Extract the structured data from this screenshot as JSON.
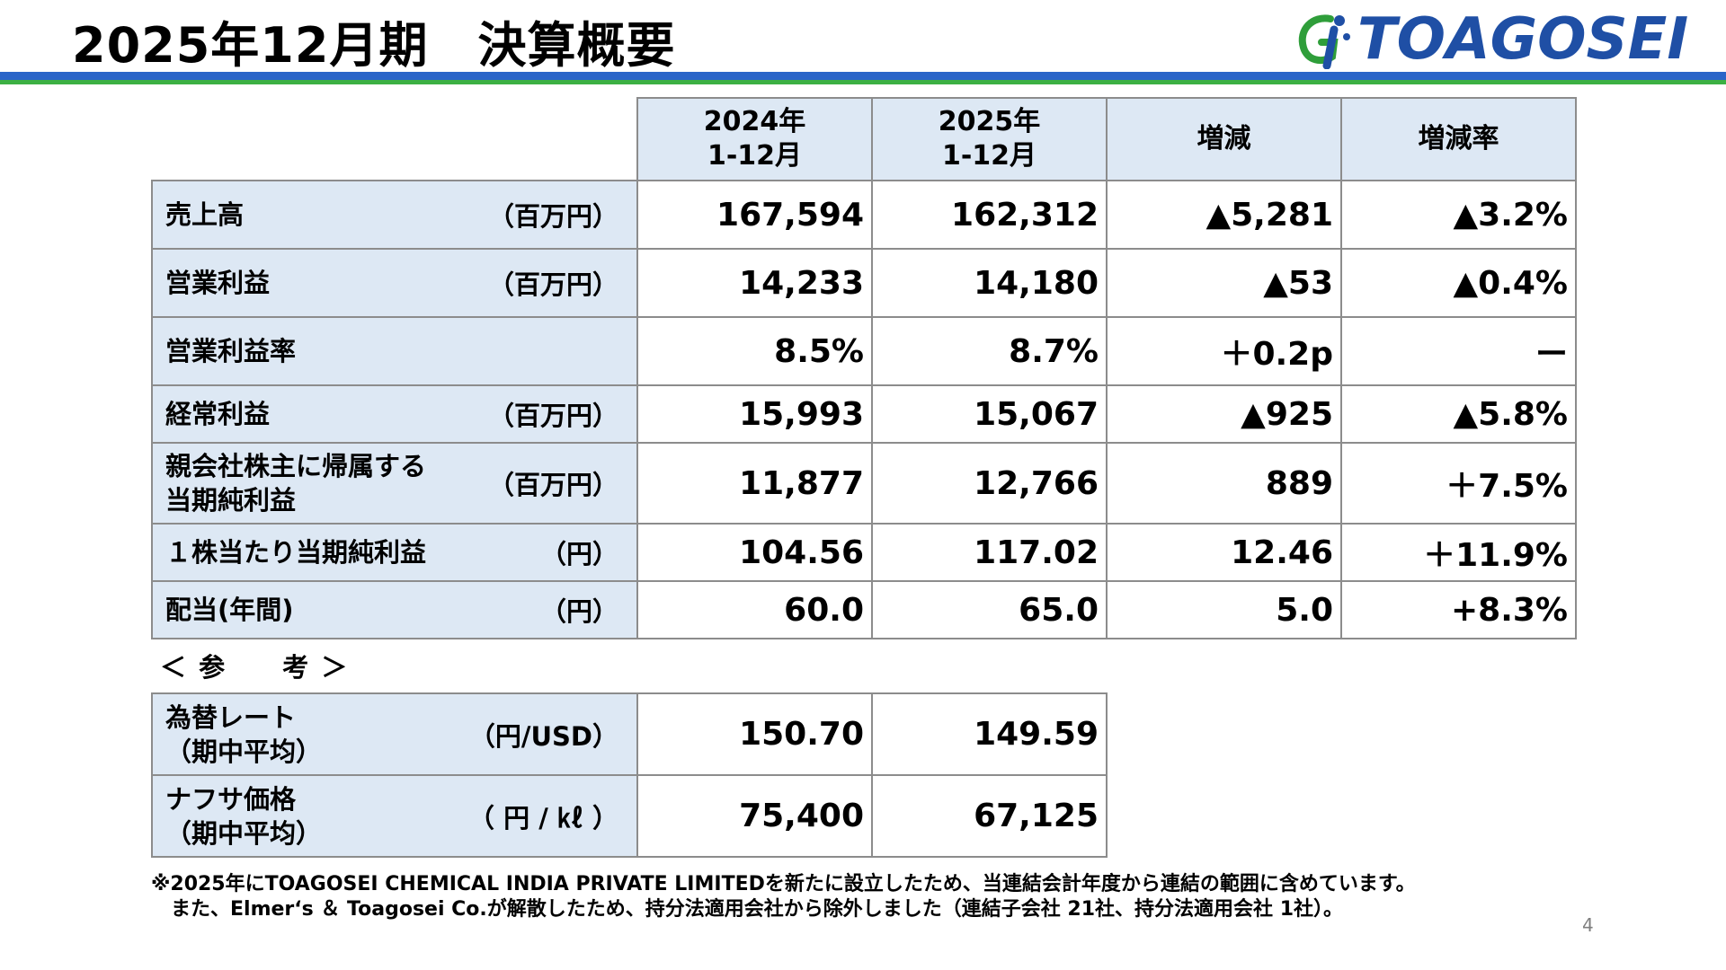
{
  "header": {
    "title": "2025年12月期　決算概要",
    "logo_text": "TOAGOSEI",
    "logo_icon": "toagosei-logo-mark"
  },
  "colors": {
    "brand_blue": "#1f4fa5",
    "rule_blue": "#2a65c8",
    "rule_green": "#3cb043",
    "header_bg": "#dde8f4"
  },
  "table": {
    "col_headers": [
      [
        "2024年",
        "1-12月"
      ],
      [
        "2025年",
        "1-12月"
      ],
      [
        "増減"
      ],
      [
        "増減率"
      ]
    ],
    "rows": [
      {
        "label": [
          "売上高"
        ],
        "unit": "（百万円）",
        "values": [
          "167,594",
          "162,312",
          "▲5,281",
          "▲3.2%"
        ]
      },
      {
        "label": [
          "営業利益"
        ],
        "unit": "（百万円）",
        "values": [
          "14,233",
          "14,180",
          "▲53",
          "▲0.4%"
        ]
      },
      {
        "label": [
          "営業利益率"
        ],
        "unit": "",
        "values": [
          "8.5%",
          "8.7%",
          "＋0.2p",
          "ー"
        ]
      },
      {
        "label": [
          "経常利益"
        ],
        "unit": "（百万円）",
        "values": [
          "15,993",
          "15,067",
          "▲925",
          "▲5.8%"
        ]
      },
      {
        "label": [
          "親会社株主に帰属する",
          "当期純利益"
        ],
        "unit": "（百万円）",
        "values": [
          "11,877",
          "12,766",
          "889",
          "＋7.5%"
        ]
      },
      {
        "label": [
          "１株当たり当期純利益"
        ],
        "unit": "（円）",
        "values": [
          "104.56",
          "117.02",
          "12.46",
          "＋11.9%"
        ]
      },
      {
        "label": [
          "配当(年間)"
        ],
        "unit": "（円）",
        "values": [
          "60.0",
          "65.0",
          "5.0",
          "+8.3%"
        ]
      }
    ]
  },
  "reference": {
    "heading": "＜ 参　　考 ＞",
    "rows": [
      {
        "label": [
          "為替レート",
          "（期中平均）"
        ],
        "unit": "（円/USD）",
        "values": [
          "150.70",
          "149.59"
        ]
      },
      {
        "label": [
          "ナフサ価格",
          "（期中平均）"
        ],
        "unit": "（ 円 / ㎘ ）",
        "values": [
          "75,400",
          "67,125"
        ]
      }
    ]
  },
  "footnote": {
    "line1": "※2025年にTOAGOSEI CHEMICAL INDIA PRIVATE LIMITEDを新たに設立したため、当連結会計年度から連結の範囲に含めています。",
    "line2": "　また、Elmer‘s ＆ Toagosei Co.が解散したため、持分法適用会社から除外しました（連結子会社 21社、持分法適用会社 1社）。"
  },
  "page_number": "4"
}
